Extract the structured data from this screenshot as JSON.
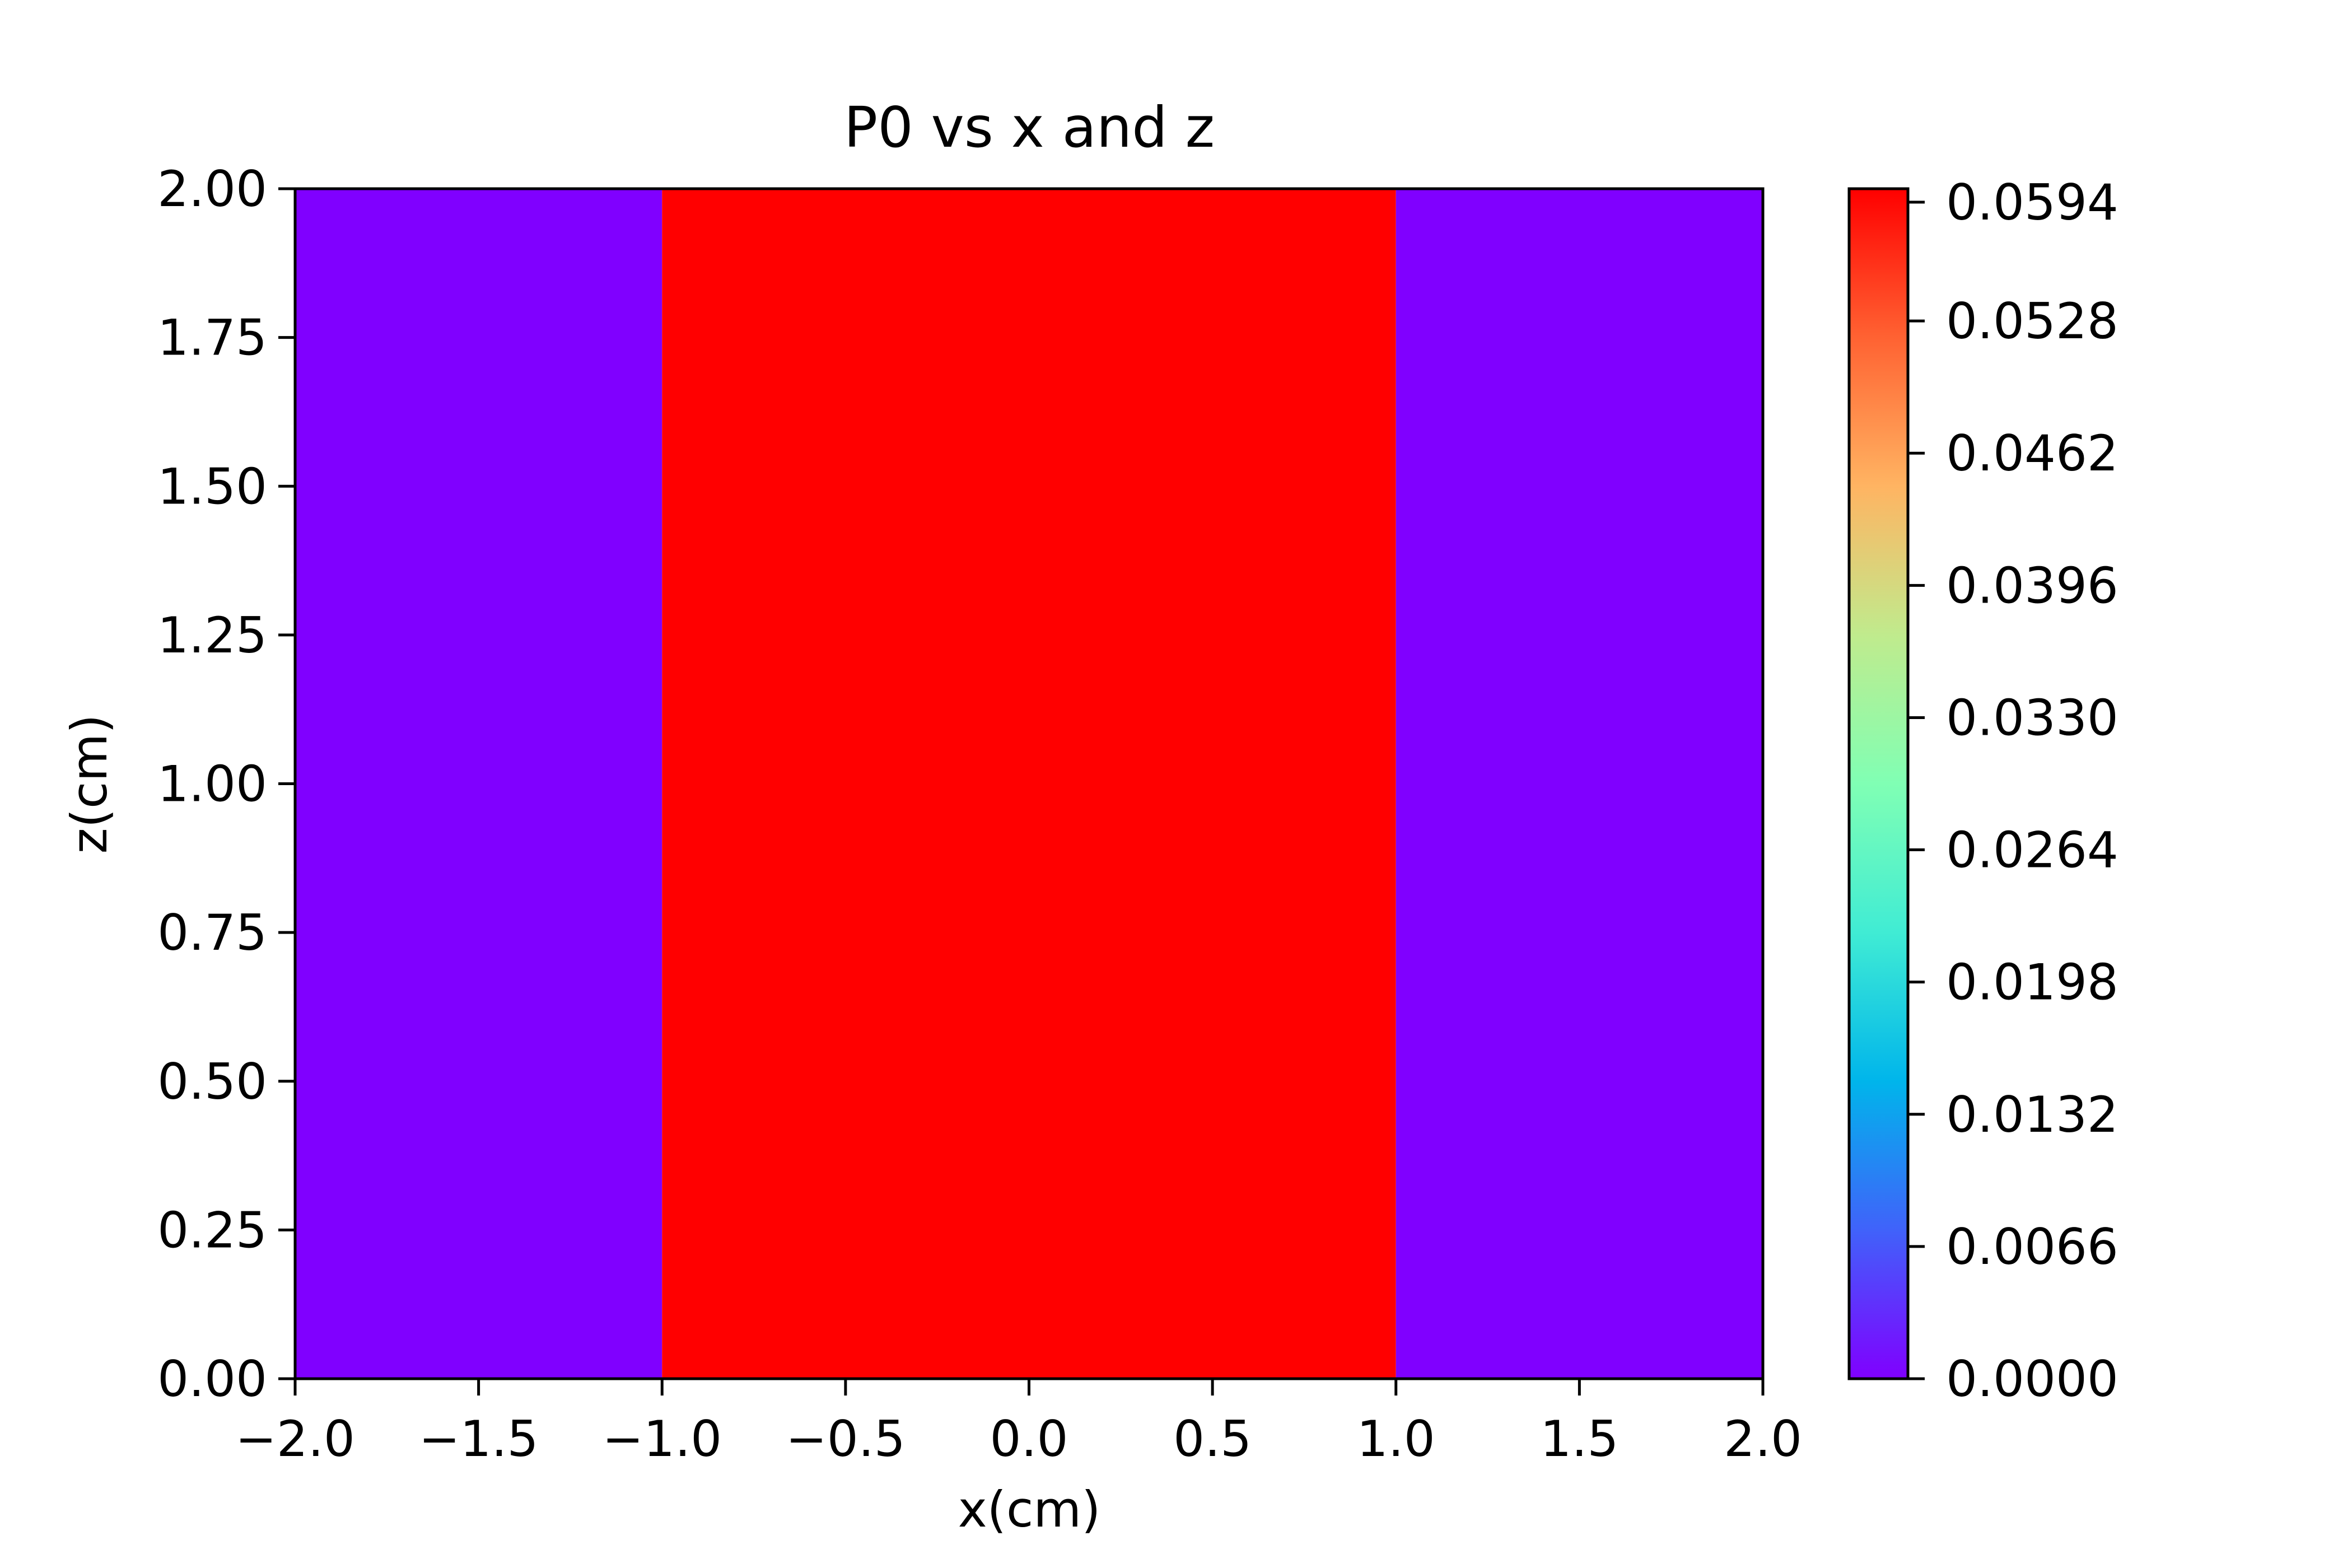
{
  "chart_data": {
    "type": "heatmap",
    "title": "P0 vs x and z",
    "xlabel": "x(cm)",
    "ylabel": "z(cm)",
    "xlim": [
      -2.0,
      2.0
    ],
    "ylim": [
      0.0,
      2.0
    ],
    "x_ticks": [
      -2.0,
      -1.5,
      -1.0,
      -0.5,
      0.0,
      0.5,
      1.0,
      1.5,
      2.0
    ],
    "x_tick_labels": [
      "−2.0",
      "−1.5",
      "−1.0",
      "−0.5",
      "0.0",
      "0.5",
      "1.0",
      "1.5",
      "2.0"
    ],
    "y_ticks": [
      0.0,
      0.25,
      0.5,
      0.75,
      1.0,
      1.25,
      1.5,
      1.75,
      2.0
    ],
    "y_tick_labels": [
      "0.00",
      "0.25",
      "0.50",
      "0.75",
      "1.00",
      "1.25",
      "1.50",
      "1.75",
      "2.00"
    ],
    "regions": [
      {
        "x_range": [
          -2.0,
          -1.0
        ],
        "z_range": [
          0.0,
          2.0
        ],
        "value": 0.0
      },
      {
        "x_range": [
          -1.0,
          1.0
        ],
        "z_range": [
          0.0,
          2.0
        ],
        "value": 0.0594
      },
      {
        "x_range": [
          1.0,
          2.0
        ],
        "z_range": [
          0.0,
          2.0
        ],
        "value": 0.0
      }
    ],
    "colorbar": {
      "colormap": "rainbow",
      "range": [
        0.0,
        0.0594
      ],
      "ticks": [
        0.0,
        0.0066,
        0.0132,
        0.0198,
        0.0264,
        0.033,
        0.0396,
        0.0462,
        0.0528,
        0.0594
      ],
      "tick_labels": [
        "0.0000",
        "0.0066",
        "0.0132",
        "0.0198",
        "0.0264",
        "0.0330",
        "0.0396",
        "0.0462",
        "0.0528",
        "0.0594"
      ]
    },
    "grid": false
  }
}
